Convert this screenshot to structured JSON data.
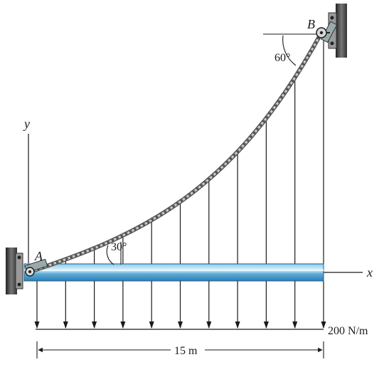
{
  "labels": {
    "point_a": "A",
    "point_b": "B",
    "axis_x": "x",
    "axis_y": "y",
    "angle_a": "30°",
    "angle_b": "60°",
    "load": "200 N/m",
    "span": "15 m"
  },
  "problem": {
    "span_m": 15,
    "distributed_load_N_per_m": 200,
    "cable_angle_at_A_deg": 30,
    "cable_angle_at_B_deg": 60,
    "hanger_count": 10
  },
  "colors": {
    "beam": "#5aa9d6",
    "beam_highlight": "#bfe3f5",
    "wall": "#3c3c3c",
    "line": "#1a1a1a"
  }
}
